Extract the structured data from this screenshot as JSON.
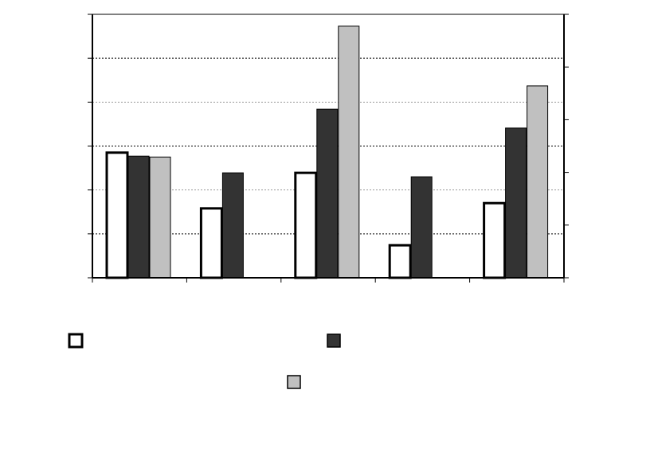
{
  "chart_data": {
    "type": "bar",
    "categories": [
      null,
      null,
      null,
      null,
      null
    ],
    "series": [
      {
        "color": "#ffffff",
        "values": [
          2.85,
          1.58,
          2.39,
          0.74,
          1.7
        ]
      },
      {
        "color": "#333333",
        "values": [
          2.77,
          2.39,
          3.84,
          2.3,
          3.41
        ]
      },
      {
        "color": "#c0c0c0",
        "values": [
          2.75,
          null,
          5.73,
          null,
          4.37
        ]
      }
    ],
    "ylim": [
      0,
      6
    ],
    "yticks": [
      0,
      1,
      2,
      3,
      4,
      5,
      6
    ],
    "y2lim": [
      0,
      5
    ],
    "y2ticks": [
      0,
      1,
      2,
      3,
      4,
      5
    ],
    "grid": true
  }
}
